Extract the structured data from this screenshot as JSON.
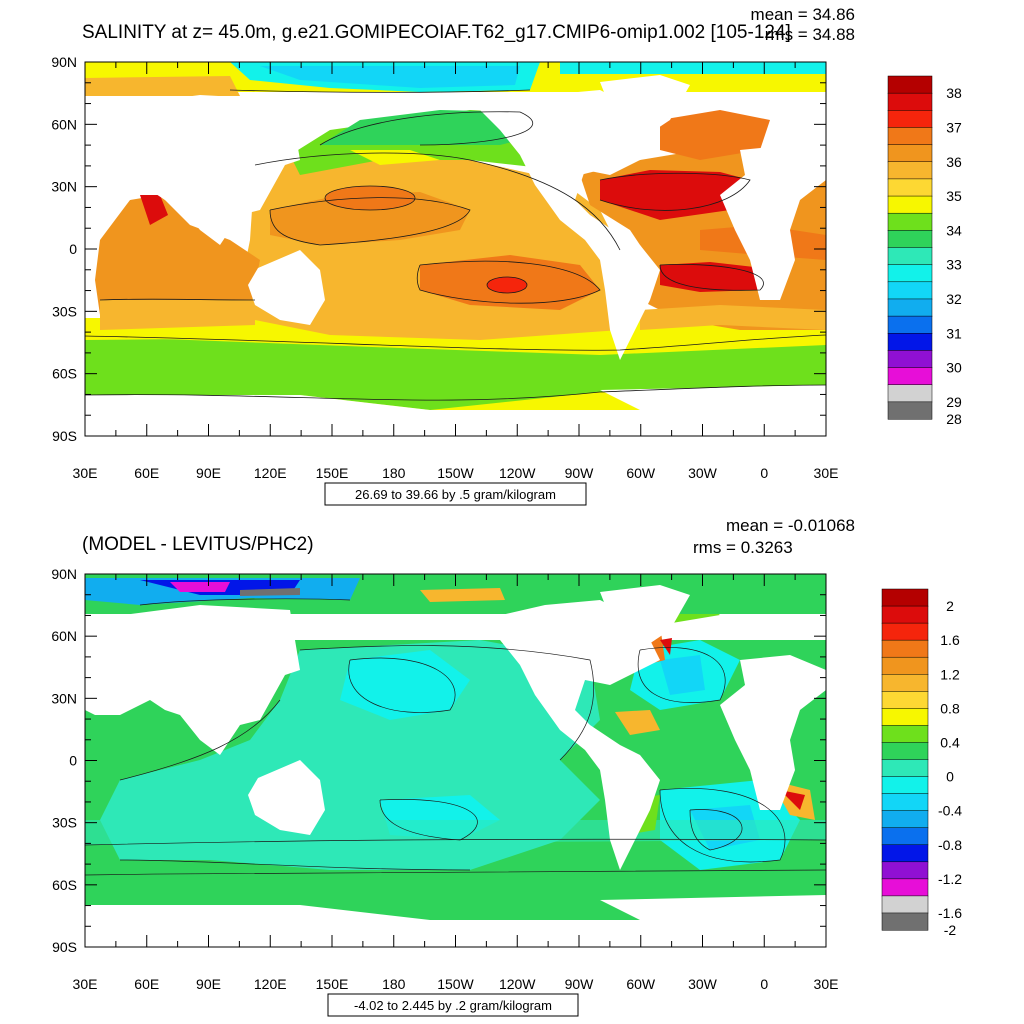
{
  "panels": [
    {
      "title": "SALINITY at z=  45.0m, g.e21.GOMIPECOIAF.T62_g17.CMIP6-omip1.002 [105-124]",
      "mean": "mean = 34.86",
      "rms": "rms = 34.88",
      "lat_ticks": [
        "90N",
        "60N",
        "30N",
        "0",
        "30S",
        "60S",
        "90S"
      ],
      "lon_ticks": [
        "30E",
        "60E",
        "90E",
        "120E",
        "150E",
        "180",
        "150W",
        "120W",
        "90W",
        "60W",
        "30W",
        "0",
        "30E"
      ],
      "range_label": "26.69 to 39.66 by .5 gram/kilogram",
      "colorbar": {
        "labels": [
          "38",
          "37",
          "36",
          "35",
          "34",
          "33",
          "32",
          "31",
          "30",
          "29",
          "28"
        ],
        "colors": [
          "#b40000",
          "#dc0c0c",
          "#f5250c",
          "#f07818",
          "#f0951e",
          "#f7b62e",
          "#fdd833",
          "#f7f700",
          "#6ee01c",
          "#2fd35a",
          "#2ee8b7",
          "#12f2ea",
          "#12d6f7",
          "#11adef",
          "#0a70ee",
          "#0216e8",
          "#9010d3",
          "#e70ed8",
          "#d2d2d2",
          "#707070"
        ]
      }
    },
    {
      "title": "(MODEL - LEVITUS/PHC2)",
      "mean": "mean = -0.01068",
      "rms": "rms = 0.3263",
      "lat_ticks": [
        "90N",
        "60N",
        "30N",
        "0",
        "30S",
        "60S",
        "90S"
      ],
      "lon_ticks": [
        "30E",
        "60E",
        "90E",
        "120E",
        "150E",
        "180",
        "150W",
        "120W",
        "90W",
        "60W",
        "30W",
        "0",
        "30E"
      ],
      "range_label": "-4.02 to 2.445 by .2 gram/kilogram",
      "colorbar": {
        "labels": [
          "2",
          "1.6",
          "1.2",
          "0.8",
          "0.4",
          "0",
          "-0.4",
          "-0.8",
          "-1.2",
          "-1.6",
          "-2"
        ],
        "colors": [
          "#b40000",
          "#dc0c0c",
          "#f5250c",
          "#f07818",
          "#f0951e",
          "#f7b62e",
          "#fdd833",
          "#f7f700",
          "#6ee01c",
          "#2fd35a",
          "#2ee8b7",
          "#12f2ea",
          "#12d6f7",
          "#11adef",
          "#0a70ee",
          "#0216e8",
          "#9010d3",
          "#e70ed8",
          "#d2d2d2",
          "#707070"
        ]
      }
    }
  ]
}
